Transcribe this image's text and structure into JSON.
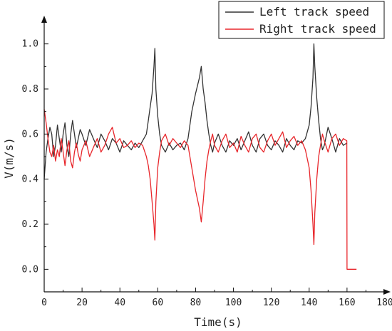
{
  "chart_data": {
    "type": "line",
    "title": "",
    "xlabel": "Time(s)",
    "ylabel": "V(m/s)",
    "xlim": [
      0,
      180
    ],
    "ylim": [
      -0.1,
      1.1
    ],
    "xticks": [
      0,
      20,
      40,
      60,
      80,
      100,
      120,
      140,
      160,
      180
    ],
    "yticks": [
      0.0,
      0.2,
      0.4,
      0.6,
      0.8,
      1.0
    ],
    "xtick_labels": [
      "0",
      "20",
      "40",
      "60",
      "80",
      "100",
      "120",
      "140",
      "160",
      "180"
    ],
    "ytick_labels": [
      "0.0",
      "0.2",
      "0.4",
      "0.6",
      "0.8",
      "1.0"
    ],
    "grid": false,
    "legend_position": "top-right",
    "series": [
      {
        "name": "Left track speed",
        "color": "#333333",
        "x": [
          0,
          1,
          2,
          3,
          4,
          5,
          6,
          7,
          8,
          9,
          10,
          11,
          12,
          13,
          14,
          15,
          16,
          17,
          18,
          19,
          20,
          22,
          24,
          26,
          28,
          30,
          32,
          34,
          36,
          38,
          40,
          42,
          44,
          46,
          48,
          50,
          52,
          54,
          55,
          56,
          57,
          58,
          58.5,
          59,
          60,
          61,
          62,
          64,
          66,
          68,
          70,
          72,
          74,
          76,
          78,
          80,
          82,
          83,
          84,
          85,
          86,
          87,
          88,
          89,
          90,
          92,
          94,
          96,
          98,
          100,
          102,
          104,
          106,
          108,
          110,
          112,
          114,
          116,
          118,
          120,
          122,
          124,
          126,
          128,
          130,
          132,
          134,
          136,
          138,
          140,
          141,
          142,
          142.5,
          143,
          144,
          145,
          146,
          147,
          148,
          150,
          152,
          154,
          156,
          158,
          159.9
        ],
        "values": [
          0.4,
          0.52,
          0.58,
          0.63,
          0.6,
          0.5,
          0.55,
          0.64,
          0.58,
          0.52,
          0.6,
          0.65,
          0.55,
          0.5,
          0.6,
          0.66,
          0.6,
          0.54,
          0.58,
          0.62,
          0.6,
          0.55,
          0.62,
          0.58,
          0.54,
          0.6,
          0.57,
          0.53,
          0.58,
          0.56,
          0.52,
          0.57,
          0.55,
          0.53,
          0.56,
          0.54,
          0.57,
          0.6,
          0.66,
          0.72,
          0.78,
          0.9,
          0.98,
          0.8,
          0.68,
          0.6,
          0.55,
          0.52,
          0.56,
          0.53,
          0.55,
          0.56,
          0.53,
          0.58,
          0.7,
          0.78,
          0.85,
          0.9,
          0.8,
          0.74,
          0.66,
          0.6,
          0.55,
          0.52,
          0.56,
          0.6,
          0.55,
          0.52,
          0.57,
          0.55,
          0.58,
          0.53,
          0.57,
          0.61,
          0.55,
          0.52,
          0.58,
          0.6,
          0.55,
          0.53,
          0.57,
          0.55,
          0.52,
          0.58,
          0.55,
          0.53,
          0.57,
          0.56,
          0.58,
          0.64,
          0.72,
          0.85,
          1.0,
          0.9,
          0.76,
          0.66,
          0.58,
          0.53,
          0.55,
          0.63,
          0.58,
          0.52,
          0.58,
          0.55,
          0.56
        ]
      },
      {
        "name": "Right track speed",
        "color": "#e8262b",
        "x": [
          0,
          1,
          2,
          3,
          4,
          5,
          6,
          7,
          8,
          9,
          10,
          11,
          12,
          13,
          14,
          15,
          16,
          17,
          18,
          19,
          20,
          22,
          24,
          26,
          28,
          30,
          32,
          34,
          36,
          38,
          40,
          42,
          44,
          46,
          48,
          50,
          52,
          54,
          55,
          56,
          57,
          58,
          58.5,
          59,
          60,
          61,
          62,
          64,
          66,
          68,
          70,
          72,
          74,
          76,
          78,
          80,
          82,
          83,
          84,
          85,
          86,
          87,
          88,
          89,
          90,
          92,
          94,
          96,
          98,
          100,
          102,
          104,
          106,
          108,
          110,
          112,
          114,
          116,
          118,
          120,
          122,
          124,
          126,
          128,
          130,
          132,
          134,
          136,
          138,
          140,
          141,
          142,
          142.5,
          143,
          144,
          145,
          146,
          147,
          148,
          150,
          152,
          154,
          156,
          158,
          159.9,
          160,
          165
        ],
        "values": [
          0.71,
          0.65,
          0.58,
          0.52,
          0.5,
          0.55,
          0.48,
          0.53,
          0.5,
          0.58,
          0.52,
          0.46,
          0.53,
          0.57,
          0.48,
          0.45,
          0.52,
          0.56,
          0.51,
          0.48,
          0.53,
          0.57,
          0.5,
          0.54,
          0.58,
          0.52,
          0.55,
          0.6,
          0.63,
          0.56,
          0.58,
          0.54,
          0.55,
          0.57,
          0.54,
          0.56,
          0.55,
          0.5,
          0.46,
          0.4,
          0.3,
          0.2,
          0.13,
          0.3,
          0.45,
          0.52,
          0.57,
          0.6,
          0.55,
          0.58,
          0.56,
          0.54,
          0.57,
          0.55,
          0.45,
          0.35,
          0.27,
          0.21,
          0.3,
          0.4,
          0.48,
          0.53,
          0.57,
          0.6,
          0.55,
          0.52,
          0.57,
          0.6,
          0.54,
          0.56,
          0.52,
          0.59,
          0.55,
          0.52,
          0.58,
          0.6,
          0.54,
          0.52,
          0.57,
          0.6,
          0.55,
          0.58,
          0.61,
          0.54,
          0.57,
          0.59,
          0.55,
          0.57,
          0.53,
          0.45,
          0.35,
          0.2,
          0.11,
          0.25,
          0.4,
          0.5,
          0.55,
          0.6,
          0.57,
          0.52,
          0.58,
          0.6,
          0.55,
          0.58,
          0.57,
          0.0,
          0.0
        ]
      }
    ]
  }
}
